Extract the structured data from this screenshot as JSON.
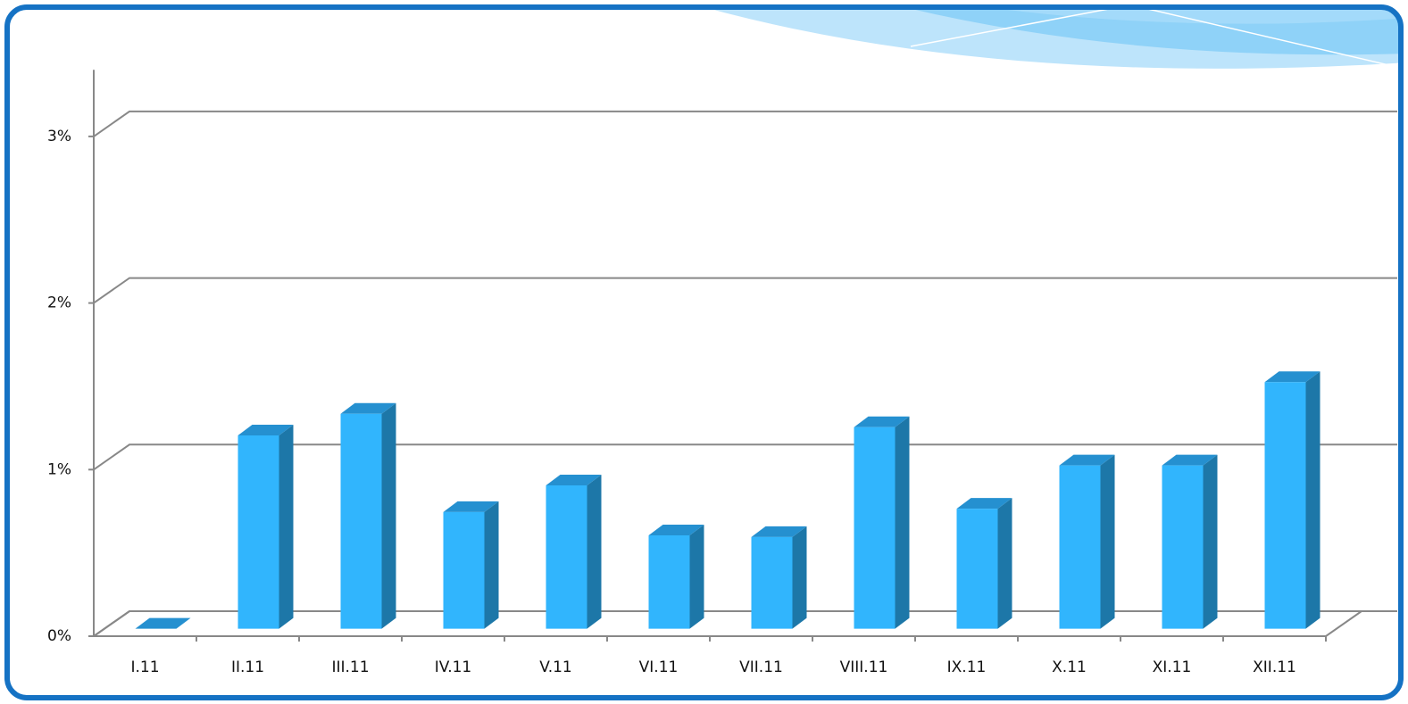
{
  "chart_data": {
    "type": "bar3d",
    "categories": [
      "I.11",
      "II.11",
      "III.11",
      "IV.11",
      "V.11",
      "VI.11",
      "VII.11",
      "VIII.11",
      "IX.11",
      "X.11",
      "XI.11",
      "XII.11"
    ],
    "values": [
      0,
      1.16,
      1.29,
      0.7,
      0.86,
      0.56,
      0.55,
      1.21,
      0.72,
      0.98,
      0.98,
      1.48
    ],
    "color": "#31b5fd",
    "ylim": [
      0,
      3.4
    ],
    "yticks": [
      {
        "value": 0,
        "label": "0%"
      },
      {
        "value": 1,
        "label": "1%"
      },
      {
        "value": 2,
        "label": "2%"
      },
      {
        "value": 3,
        "label": "3%"
      }
    ],
    "grid": true
  }
}
